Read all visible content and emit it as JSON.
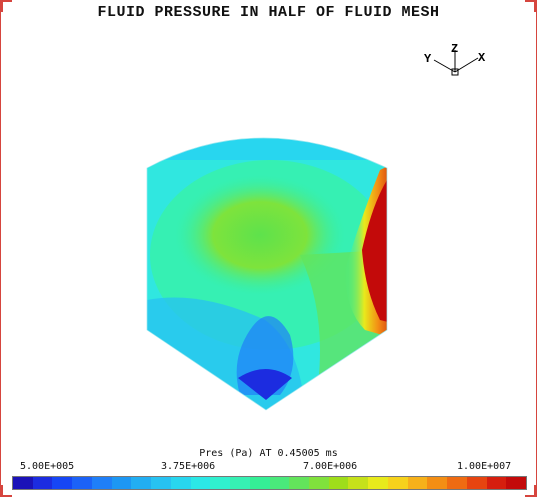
{
  "plot": {
    "title": "FLUID PRESSURE IN HALF OF FLUID MESH",
    "axes": {
      "z": "Z",
      "y": "Y",
      "x": "X"
    }
  },
  "legend": {
    "title": "Pres (Pa) AT 0.45005 ms",
    "ticks": [
      "5.00E+005",
      "3.75E+006",
      "7.00E+006",
      "1.00E+007"
    ],
    "colors": [
      "#1b12b8",
      "#1c2ce0",
      "#1646f5",
      "#1c62f7",
      "#1f7ff8",
      "#1d97f3",
      "#22aef2",
      "#27c2f2",
      "#28d6ef",
      "#2be8e6",
      "#30f0cf",
      "#36f0b3",
      "#35ef96",
      "#4ae97b",
      "#63e45b",
      "#80e13c",
      "#9fdd1a",
      "#c6e11a",
      "#e8ea1c",
      "#f6d21c",
      "#f6b11a",
      "#f38e14",
      "#ef6b12",
      "#e64410",
      "#d61e0e",
      "#c30a0a"
    ]
  },
  "colors": {
    "frame": "#d6453e"
  }
}
